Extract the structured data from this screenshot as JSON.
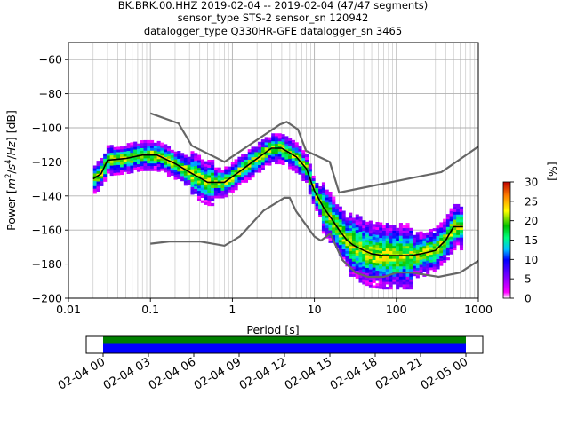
{
  "chart_data": [
    {
      "type": "heatmap",
      "title_lines": [
        "BK.BRK.00.HHZ   2019-02-04 -- 2019-02-04  (47/47 segments)",
        "sensor_type STS-2 sensor_sn 120942",
        "datalogger_type Q330HR-GFE datalogger_sn 3465"
      ],
      "xlabel": "Period [s]",
      "ylabel_parts": [
        "Power [",
        "m",
        "2",
        "/",
        "s",
        "4",
        "/",
        "Hz",
        "] [dB]"
      ],
      "x_scale": "log",
      "xlim": [
        0.01,
        1000
      ],
      "ylim": [
        -200,
        -50
      ],
      "x_ticks": [
        0.01,
        0.1,
        1,
        10,
        100,
        1000
      ],
      "x_tick_labels": [
        "0.01",
        "0.1",
        "1",
        "10",
        "100",
        "1000"
      ],
      "y_ticks": [
        -200,
        -180,
        -160,
        -140,
        -120,
        -100,
        -80,
        -60
      ],
      "y_tick_labels": [
        "−200",
        "−180",
        "−160",
        "−140",
        "−120",
        "−100",
        "−80",
        "−60"
      ],
      "grid": true,
      "colorbar": {
        "label": "[%]",
        "range": [
          0,
          30
        ],
        "ticks": [
          0,
          5,
          10,
          15,
          20,
          25,
          30
        ],
        "tick_labels": [
          "0",
          "5",
          "10",
          "15",
          "20",
          "25",
          "30"
        ]
      },
      "period_range": [
        0.02,
        650
      ],
      "noise_model_high": {
        "x": [
          0.1,
          0.22,
          0.32,
          0.8,
          3.8,
          4.6,
          6.3,
          7.9,
          15.4,
          20,
          354.8,
          1000
        ],
        "y": [
          -91.5,
          -97.4,
          -110.5,
          -120,
          -98,
          -96.5,
          -101,
          -113.5,
          -120,
          -138,
          -126,
          -111
        ]
      },
      "noise_model_low": {
        "x": [
          0.1,
          0.17,
          0.4,
          0.8,
          1.24,
          2.4,
          4.3,
          5,
          6,
          10,
          12,
          15.6,
          21.9,
          31.6,
          45,
          70,
          101,
          154,
          328,
          600,
          1000
        ],
        "y": [
          -168,
          -166.7,
          -166.7,
          -169.2,
          -163.7,
          -148.6,
          -141.1,
          -141.1,
          -149,
          -163.8,
          -166.2,
          -162.1,
          -177.5,
          -185,
          -187.5,
          -187.5,
          -185,
          -185,
          -187.5,
          -185,
          -178
        ]
      },
      "mode_curve": {
        "x": [
          0.02,
          0.025,
          0.03,
          0.05,
          0.08,
          0.12,
          0.2,
          0.3,
          0.5,
          0.8,
          1.2,
          2,
          3,
          4,
          6,
          8,
          10,
          13,
          16,
          20,
          25,
          30,
          40,
          50,
          70,
          100,
          150,
          200,
          300,
          400,
          500,
          600,
          650
        ],
        "y": [
          -130,
          -127,
          -119,
          -118,
          -116,
          -116,
          -121,
          -126,
          -132,
          -132,
          -126,
          -118,
          -112,
          -112,
          -117,
          -124,
          -137,
          -147,
          -153,
          -160,
          -166,
          -169,
          -172,
          -174,
          -175,
          -175,
          -175,
          -174,
          -172,
          -166,
          -158,
          -158,
          -158
        ]
      }
    },
    {
      "type": "timeline",
      "tick_labels": [
        "02-04 00",
        "02-04 03",
        "02-04 06",
        "02-04 09",
        "02-04 12",
        "02-04 15",
        "02-04 18",
        "02-04 21",
        "02-05 00"
      ],
      "data_start_hour": 0,
      "data_end_hour": 24,
      "colors": {
        "coverage": "#008000",
        "psd": "#0000ff"
      }
    }
  ]
}
